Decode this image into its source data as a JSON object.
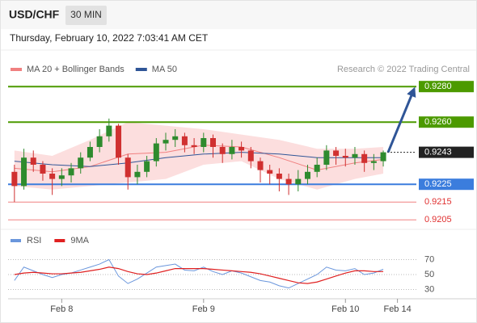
{
  "header": {
    "symbol": "USD/CHF",
    "interval": "30 MIN"
  },
  "timestamp": "Thursday, February 10, 2022 7:03:41 AM CET",
  "chart_data": {
    "type": "candlestick",
    "source": "Research © 2022 Trading Central",
    "xlim": [
      -0.5,
      42.5
    ],
    "xticks": [
      {
        "value": 5,
        "label": "Feb 8"
      },
      {
        "value": 20,
        "label": "Feb 9"
      },
      {
        "value": 35,
        "label": "Feb 10"
      },
      {
        "value": 40.5,
        "label": "Feb 14"
      }
    ],
    "ylim": [
      0.9201,
      0.9286
    ],
    "candles": {
      "up_color": "#2e8b2e",
      "down_color": "#d03030",
      "open": [
        0.9232,
        0.9224,
        0.924,
        0.9236,
        0.9231,
        0.9228,
        0.923,
        0.9234,
        0.924,
        0.9246,
        0.9252,
        0.9258,
        0.924,
        0.9229,
        0.9232,
        0.9238,
        0.9248,
        0.925,
        0.9252,
        0.9247,
        0.9246,
        0.9251,
        0.9246,
        0.9242,
        0.9246,
        0.9244,
        0.9238,
        0.9233,
        0.9231,
        0.9228,
        0.9225,
        0.9228,
        0.9232,
        0.9236,
        0.9244,
        0.9241,
        0.924,
        0.9242,
        0.9237,
        0.9238
      ],
      "high": [
        0.9236,
        0.9245,
        0.9244,
        0.9238,
        0.9234,
        0.9234,
        0.9237,
        0.9243,
        0.9249,
        0.9256,
        0.9262,
        0.9259,
        0.9242,
        0.9236,
        0.9241,
        0.9251,
        0.9254,
        0.9256,
        0.9254,
        0.9251,
        0.9254,
        0.9253,
        0.9248,
        0.925,
        0.9249,
        0.9246,
        0.924,
        0.9236,
        0.9234,
        0.9231,
        0.9233,
        0.9236,
        0.924,
        0.9247,
        0.9246,
        0.9245,
        0.9246,
        0.9244,
        0.9242,
        0.9244
      ],
      "low": [
        0.9215,
        0.9222,
        0.9232,
        0.9227,
        0.9219,
        0.9224,
        0.9226,
        0.9231,
        0.9238,
        0.9243,
        0.9249,
        0.9236,
        0.9222,
        0.9225,
        0.9229,
        0.9235,
        0.9244,
        0.9246,
        0.9243,
        0.9242,
        0.9243,
        0.924,
        0.9237,
        0.9239,
        0.924,
        0.9234,
        0.9226,
        0.9225,
        0.9221,
        0.9219,
        0.9221,
        0.9225,
        0.9229,
        0.9233,
        0.9236,
        0.9235,
        0.9236,
        0.9232,
        0.9233,
        0.9235
      ],
      "close": [
        0.9224,
        0.924,
        0.9236,
        0.9231,
        0.9228,
        0.923,
        0.9234,
        0.924,
        0.9246,
        0.9252,
        0.9258,
        0.924,
        0.9229,
        0.9232,
        0.9238,
        0.9248,
        0.925,
        0.9252,
        0.9247,
        0.9246,
        0.9251,
        0.9246,
        0.9242,
        0.9246,
        0.9244,
        0.9238,
        0.9233,
        0.9231,
        0.9228,
        0.9225,
        0.9228,
        0.9232,
        0.9236,
        0.9244,
        0.9241,
        0.924,
        0.9242,
        0.9237,
        0.9238,
        0.9243
      ]
    },
    "overlays": [
      {
        "name": "MA 20 + Bollinger Bands",
        "color": "#f08080",
        "band_color": "#fbd6d6",
        "x": [
          0,
          4,
          8,
          12,
          16,
          20,
          24,
          28,
          32,
          36,
          39
        ],
        "values": [
          0.9234,
          0.9232,
          0.9235,
          0.9242,
          0.9243,
          0.9247,
          0.9246,
          0.924,
          0.9233,
          0.9237,
          0.9239
        ],
        "upper": [
          0.9244,
          0.9241,
          0.925,
          0.926,
          0.9258,
          0.9256,
          0.9253,
          0.925,
          0.9245,
          0.9245,
          0.9246
        ],
        "lower": [
          0.9224,
          0.9222,
          0.9224,
          0.9226,
          0.9228,
          0.9236,
          0.9238,
          0.9228,
          0.9222,
          0.9228,
          0.9231
        ]
      },
      {
        "name": "MA 50",
        "color": "#2f5597",
        "x": [
          0,
          4,
          8,
          12,
          16,
          20,
          24,
          28,
          32,
          36,
          39
        ],
        "values": [
          0.9238,
          0.9236,
          0.9235,
          0.9237,
          0.924,
          0.9242,
          0.9243,
          0.9242,
          0.924,
          0.924,
          0.924
        ]
      }
    ],
    "levels": [
      {
        "value": 0.928,
        "label": "0.9280",
        "color": "#4c9a00",
        "box": true,
        "line": "solid"
      },
      {
        "value": 0.926,
        "label": "0.9260",
        "color": "#4c9a00",
        "box": true,
        "line": "solid"
      },
      {
        "value": 0.9243,
        "label": "0.9243",
        "color": "#222222",
        "box": true,
        "line": "dotted"
      },
      {
        "value": 0.9225,
        "label": "0.9225",
        "color": "#3b7ddd",
        "box": true,
        "line": "solid"
      },
      {
        "value": 0.9215,
        "label": "0.9215",
        "color": "#f08080",
        "box": false,
        "line": "solid"
      },
      {
        "value": 0.9205,
        "label": "0.9205",
        "color": "#f08080",
        "box": false,
        "line": "solid"
      }
    ],
    "target_arrow": {
      "color": "#2f5597",
      "to": 0.928
    },
    "rsi": {
      "ylim": [
        10,
        90
      ],
      "yticks": [
        70,
        50,
        30
      ],
      "series": [
        {
          "name": "RSI",
          "color": "#6a96dc",
          "values": [
            42,
            60,
            55,
            50,
            46,
            50,
            52,
            56,
            60,
            64,
            70,
            48,
            38,
            44,
            52,
            60,
            62,
            64,
            56,
            55,
            60,
            54,
            50,
            55,
            52,
            47,
            42,
            40,
            35,
            32,
            38,
            44,
            50,
            60,
            56,
            55,
            58,
            50,
            52,
            57
          ]
        },
        {
          "name": "9MA",
          "color": "#e02020",
          "values": [
            50,
            52,
            53,
            52,
            51,
            51,
            52,
            53,
            55,
            57,
            60,
            58,
            54,
            51,
            50,
            52,
            55,
            58,
            58,
            58,
            58,
            57,
            56,
            55,
            54,
            53,
            51,
            48,
            45,
            42,
            39,
            38,
            40,
            44,
            48,
            52,
            55,
            55,
            54,
            54
          ]
        }
      ]
    }
  }
}
